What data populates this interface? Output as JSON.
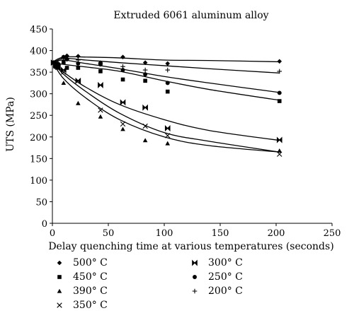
{
  "chart_data": {
    "type": "scatter",
    "title": "Extruded 6061 aluminum alloy",
    "xlabel": "Delay quenching time at various temperatures (seconds)",
    "ylabel": "UTS (MPa)",
    "xlim": [
      0,
      250
    ],
    "ylim": [
      0,
      450
    ],
    "xticks": [
      0,
      50,
      100,
      150,
      200,
      250
    ],
    "yticks": [
      0,
      50,
      100,
      150,
      200,
      250,
      300,
      350,
      400,
      450
    ],
    "grid": false,
    "legend_position": "bottom",
    "series": [
      {
        "name": "500°C",
        "marker": "diamond",
        "x": [
          1,
          3,
          5,
          10,
          13,
          23,
          43,
          63,
          83,
          103,
          203
        ],
        "y": [
          372,
          370,
          370,
          385,
          388,
          387,
          372,
          385,
          372,
          370,
          375
        ],
        "trend_y": [
          375,
          385,
          385,
          383,
          378,
          377,
          374
        ]
      },
      {
        "name": "450°C",
        "marker": "square",
        "x": [
          1,
          3,
          5,
          10,
          13,
          23,
          43,
          63,
          83,
          103,
          203
        ],
        "y": [
          372,
          365,
          368,
          373,
          360,
          360,
          352,
          333,
          330,
          305,
          283
        ],
        "trend_y": [
          372,
          368,
          362,
          352,
          330,
          310,
          285
        ]
      },
      {
        "name": "390°C",
        "marker": "triangle",
        "x": [
          1,
          3,
          5,
          10,
          23,
          43,
          63,
          83,
          103,
          203
        ],
        "y": [
          372,
          362,
          360,
          325,
          278,
          247,
          218,
          192,
          185,
          168
        ],
        "trend_y": [
          370,
          335,
          290,
          240,
          200,
          180,
          165
        ]
      },
      {
        "name": "350°C",
        "marker": "x",
        "x": [
          1,
          3,
          5,
          10,
          23,
          43,
          63,
          83,
          103,
          203
        ],
        "y": [
          372,
          368,
          363,
          350,
          330,
          262,
          230,
          225,
          203,
          160
        ],
        "trend_y": [
          372,
          345,
          305,
          255,
          210,
          190,
          165
        ]
      },
      {
        "name": "300°C",
        "marker": "bowtie",
        "x": [
          1,
          3,
          5,
          10,
          23,
          43,
          63,
          83,
          103,
          203
        ],
        "y": [
          372,
          366,
          362,
          355,
          330,
          320,
          280,
          268,
          220,
          193
        ],
        "trend_y": [
          370,
          350,
          315,
          275,
          240,
          215,
          192
        ]
      },
      {
        "name": "250°C",
        "marker": "circle",
        "x": [
          1,
          3,
          5,
          10,
          13,
          23,
          43,
          63,
          83,
          103,
          203
        ],
        "y": [
          372,
          370,
          368,
          385,
          380,
          370,
          368,
          355,
          345,
          325,
          302
        ],
        "trend_y": [
          372,
          378,
          370,
          358,
          340,
          325,
          303
        ]
      },
      {
        "name": "200°C",
        "marker": "plus",
        "x": [
          1,
          3,
          5,
          10,
          13,
          23,
          43,
          63,
          83,
          103,
          203
        ],
        "y": [
          372,
          365,
          370,
          383,
          380,
          378,
          370,
          363,
          355,
          355,
          352
        ],
        "trend_y": [
          372,
          382,
          378,
          372,
          365,
          358,
          348
        ]
      }
    ],
    "trend_x": [
      1,
      10,
      30,
      60,
      100,
      140,
      203
    ]
  }
}
